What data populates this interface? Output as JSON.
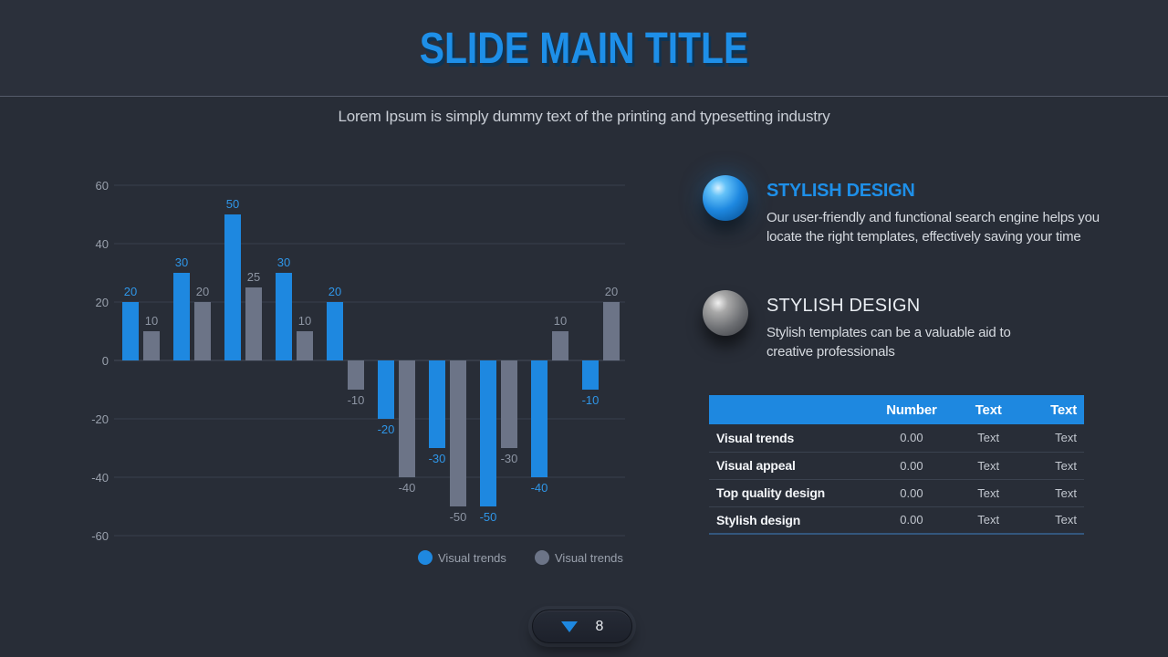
{
  "slide": {
    "title": "SLIDE MAIN TITLE",
    "subtitle": "Lorem Ipsum is simply dummy text of the printing and typesetting industry",
    "page_number": "8"
  },
  "colors": {
    "background": "#282d37",
    "header_background": "#2b303b",
    "accent_blue": "#1e88e0",
    "slate_gray": "#6c7487",
    "grid_line": "#39404d",
    "tick_label": "#99a0ac"
  },
  "chart_data": {
    "type": "bar",
    "series": [
      {
        "name": "Visual trends",
        "color": "#1e88e0",
        "label_color": "#2f96e8",
        "values": [
          20,
          30,
          50,
          30,
          20,
          -20,
          -30,
          -50,
          -40,
          -10
        ]
      },
      {
        "name": "Visual trends",
        "color": "#6c7487",
        "label_color": "#8d95a3",
        "values": [
          10,
          20,
          25,
          10,
          -10,
          -40,
          -50,
          -30,
          10,
          20
        ]
      }
    ],
    "ylim": [
      -60,
      60
    ],
    "yticks": [
      60,
      40,
      20,
      0,
      -20,
      -40,
      -60
    ],
    "grid": true,
    "value_labels": true,
    "legend_position": "bottom"
  },
  "features": [
    {
      "title": "STYLISH DESIGN",
      "body": "Our user-friendly and functional search engine helps you locate the right templates, effectively saving your time",
      "icon": "blue-sphere"
    },
    {
      "title": "STYLISH DESIGN",
      "body": "Stylish templates can be a valuable aid to creative professionals",
      "icon": "gray-sphere"
    }
  ],
  "table": {
    "headers": [
      "",
      "Number",
      "Text",
      "Text"
    ],
    "rows": [
      {
        "label": "Visual trends",
        "number": "0.00",
        "text1": "Text",
        "text2": "Text"
      },
      {
        "label": "Visual appeal",
        "number": "0.00",
        "text1": "Text",
        "text2": "Text"
      },
      {
        "label": "Top quality design",
        "number": "0.00",
        "text1": "Text",
        "text2": "Text"
      },
      {
        "label": "Stylish design",
        "number": "0.00",
        "text1": "Text",
        "text2": "Text"
      }
    ]
  }
}
